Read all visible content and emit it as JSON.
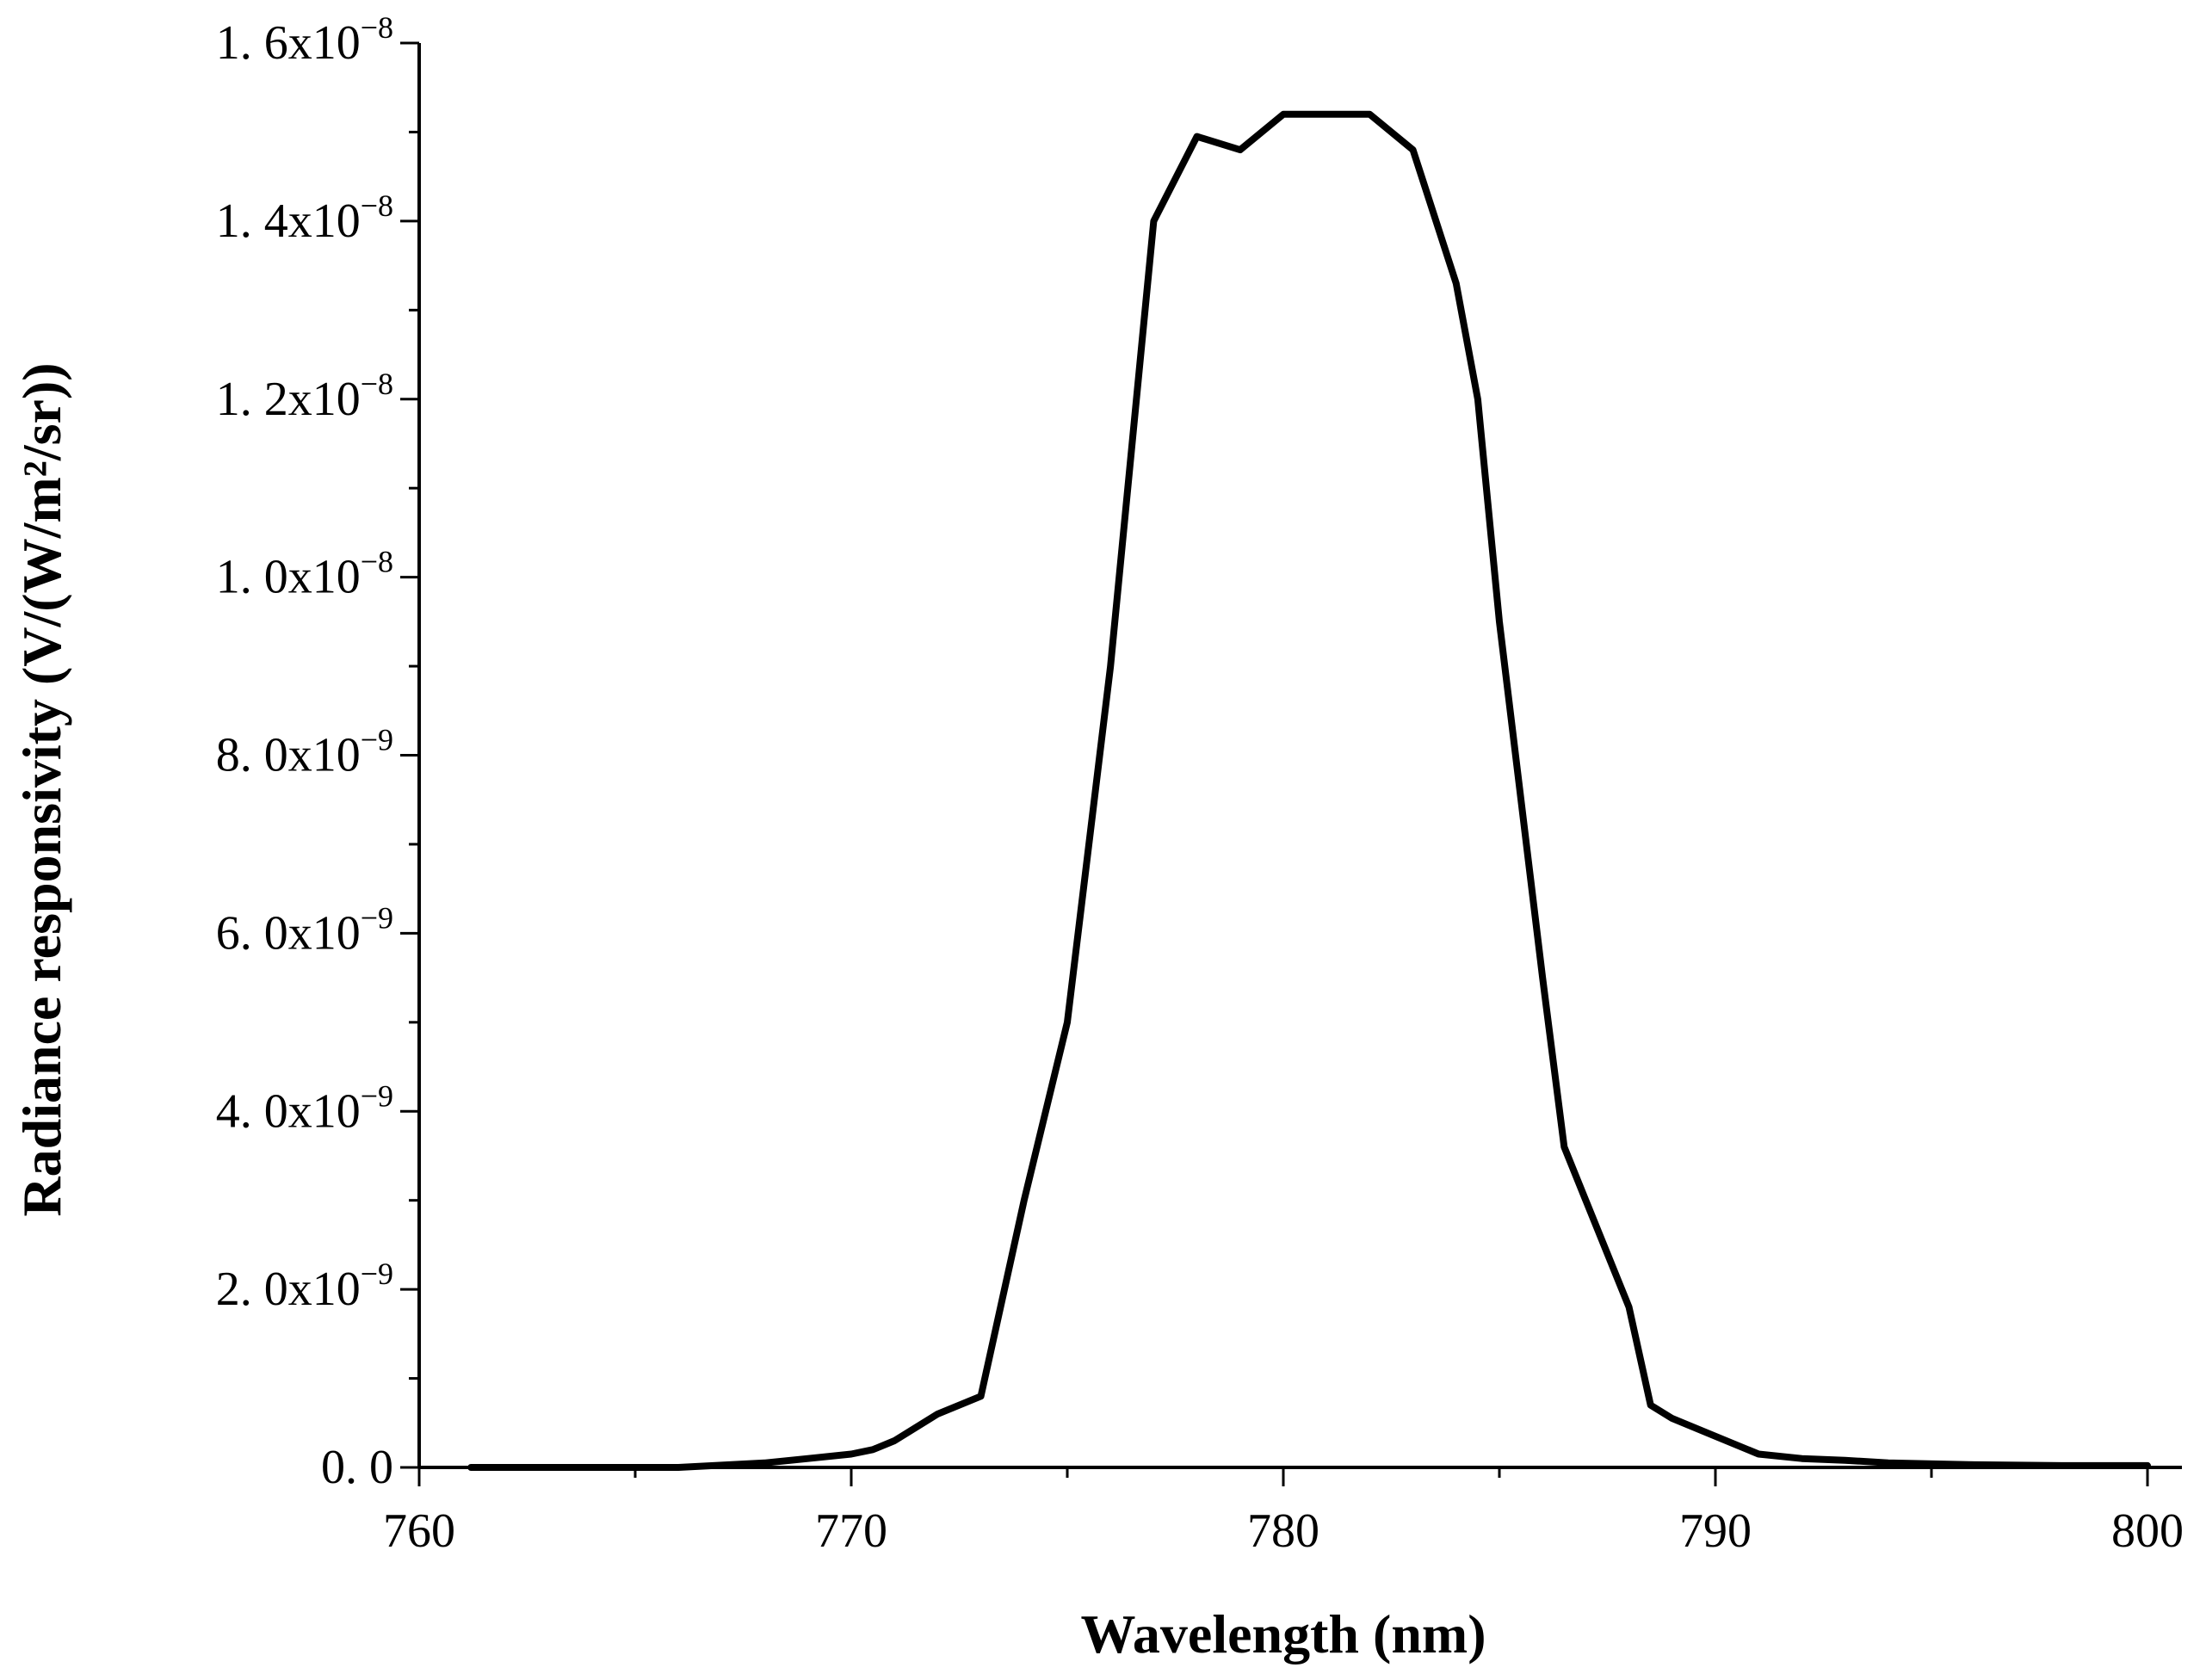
{
  "chart_data": {
    "type": "line",
    "title": "",
    "xlabel": "Wavelength (nm)",
    "ylabel": "Radiance responsivity (V/(W/m²/sr))",
    "xlim": [
      760,
      800
    ],
    "ylim": [
      0,
      1.6e-08
    ],
    "grid": false,
    "legend": "none",
    "x_ticks": [
      {
        "value": 760,
        "label": "760"
      },
      {
        "value": 770,
        "label": "770"
      },
      {
        "value": 780,
        "label": "780"
      },
      {
        "value": 790,
        "label": "790"
      },
      {
        "value": 800,
        "label": "800"
      }
    ],
    "y_ticks": [
      {
        "value": 0,
        "mantissa": "0. 0",
        "exponent": ""
      },
      {
        "value": 2e-09,
        "mantissa": "2. 0x10",
        "exponent": "−9"
      },
      {
        "value": 4e-09,
        "mantissa": "4. 0x10",
        "exponent": "−9"
      },
      {
        "value": 6e-09,
        "mantissa": "6. 0x10",
        "exponent": "−9"
      },
      {
        "value": 8e-09,
        "mantissa": "8. 0x10",
        "exponent": "−9"
      },
      {
        "value": 1e-08,
        "mantissa": "1. 0x10",
        "exponent": "−8"
      },
      {
        "value": 1.2e-08,
        "mantissa": "1. 2x10",
        "exponent": "−8"
      },
      {
        "value": 1.4e-08,
        "mantissa": "1. 4x10",
        "exponent": "−8"
      },
      {
        "value": 1.6e-08,
        "mantissa": "1. 6x10",
        "exponent": "−8"
      }
    ],
    "series": [
      {
        "color": "#000000",
        "x": [
          761.2,
          764,
          766,
          768,
          769,
          770,
          770.5,
          771,
          772,
          773,
          774,
          775,
          776,
          777,
          778,
          779,
          780,
          781,
          782,
          783,
          784,
          784.5,
          785,
          786,
          786.5,
          787,
          788,
          788.5,
          789,
          790,
          791,
          792,
          793,
          794,
          796,
          798,
          800
        ],
        "y": [
          0,
          0,
          0,
          5e-11,
          1e-10,
          1.5e-10,
          2e-10,
          3e-10,
          6e-10,
          8e-10,
          3e-09,
          5e-09,
          9e-09,
          1.4e-08,
          1.495e-08,
          1.48e-08,
          1.52e-08,
          1.52e-08,
          1.52e-08,
          1.48e-08,
          1.33e-08,
          1.2e-08,
          9.5e-09,
          5.5e-09,
          3.6e-09,
          3e-09,
          1.8e-09,
          7e-10,
          5.5e-10,
          3.5e-10,
          1.5e-10,
          1e-10,
          8e-11,
          5e-11,
          3e-11,
          2e-11,
          2e-11
        ]
      }
    ]
  }
}
